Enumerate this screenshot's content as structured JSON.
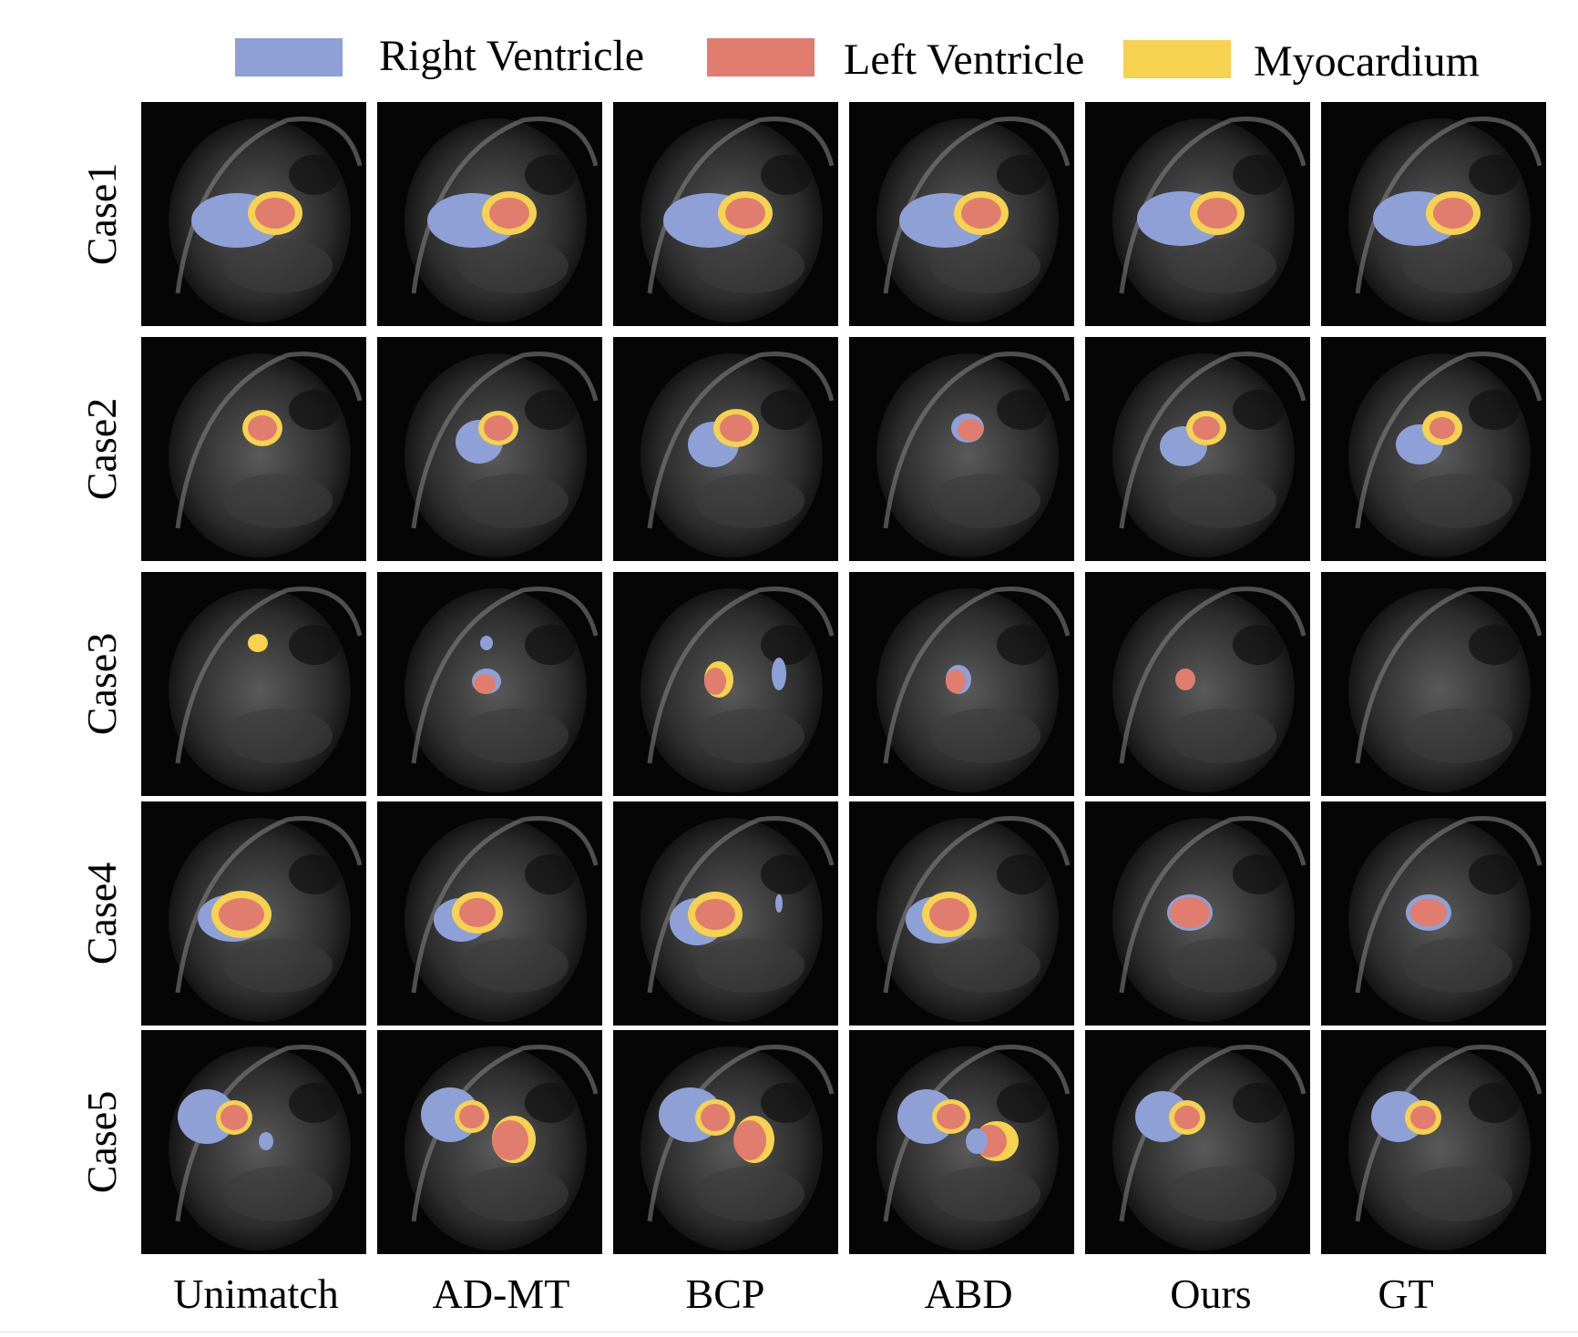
{
  "legend": [
    {
      "label": "Right Ventricle",
      "color": "#8ea0d6"
    },
    {
      "label": "Left Ventricle",
      "color": "#e07d6e"
    },
    {
      "label": "Myocardium",
      "color": "#f5d24f"
    }
  ],
  "rows": [
    "Case1",
    "Case2",
    "Case3",
    "Case4",
    "Case5"
  ],
  "columns": [
    "Unimatch",
    "AD-MT",
    "BCP",
    "ABD",
    "Ours",
    "GT"
  ]
}
